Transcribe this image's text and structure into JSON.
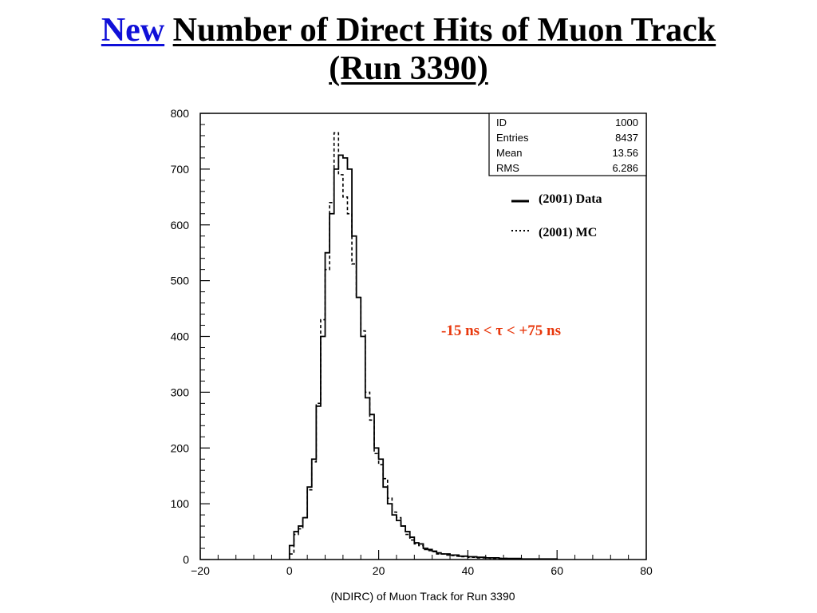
{
  "title": {
    "highlight": "New",
    "main": "Number of Direct Hits of Muon Track",
    "line2": "(Run 3390)",
    "highlight_color": "#1010d8"
  },
  "stats_box": {
    "rows": [
      {
        "label": "ID",
        "value": "1000"
      },
      {
        "label": "Entries",
        "value": "8437"
      },
      {
        "label": "Mean",
        "value": "13.56"
      },
      {
        "label": "RMS",
        "value": "6.286"
      }
    ]
  },
  "annotation": {
    "text": "-15 ns < τ < +75 ns",
    "color": "#e8380d"
  },
  "chart_data": {
    "type": "histogram",
    "xlabel": "(NDIRC) of Muon Track for Run 3390",
    "ylabel": "",
    "xlim": [
      -20,
      80
    ],
    "ylim": [
      0,
      800
    ],
    "xticks": [
      -20,
      0,
      20,
      40,
      60,
      80
    ],
    "yticks": [
      0,
      100,
      200,
      300,
      400,
      500,
      600,
      700,
      800
    ],
    "bin_width": 1,
    "legend": {
      "placement": "top-right",
      "entries": [
        {
          "name": "(2001) Data",
          "style": "solid"
        },
        {
          "name": "(2001) MC",
          "style": "dotted"
        }
      ]
    },
    "series": [
      {
        "name": "(2001) Data",
        "style": "solid",
        "x_start": 0,
        "values": [
          25,
          50,
          60,
          75,
          130,
          180,
          275,
          400,
          550,
          620,
          700,
          725,
          720,
          700,
          580,
          470,
          400,
          290,
          260,
          200,
          180,
          130,
          100,
          80,
          70,
          60,
          50,
          40,
          30,
          28,
          20,
          18,
          15,
          12,
          10,
          10,
          8,
          8,
          6,
          6,
          5,
          5,
          4,
          4,
          3,
          3,
          3,
          2,
          2,
          2,
          2,
          2,
          1,
          1,
          1,
          1,
          1,
          1,
          1,
          1
        ]
      },
      {
        "name": "(2001) MC",
        "style": "dotted",
        "x_start": 0,
        "values": [
          10,
          45,
          55,
          75,
          125,
          175,
          280,
          430,
          520,
          640,
          765,
          690,
          650,
          620,
          530,
          470,
          410,
          300,
          250,
          190,
          170,
          145,
          110,
          85,
          75,
          60,
          45,
          35,
          28,
          25,
          18,
          16,
          14,
          10,
          10,
          8,
          7,
          6,
          5,
          5,
          4,
          4,
          3,
          3,
          3,
          2,
          2,
          2,
          2,
          1,
          1,
          1,
          1,
          1,
          1,
          1,
          1,
          1,
          1,
          1
        ]
      }
    ]
  }
}
